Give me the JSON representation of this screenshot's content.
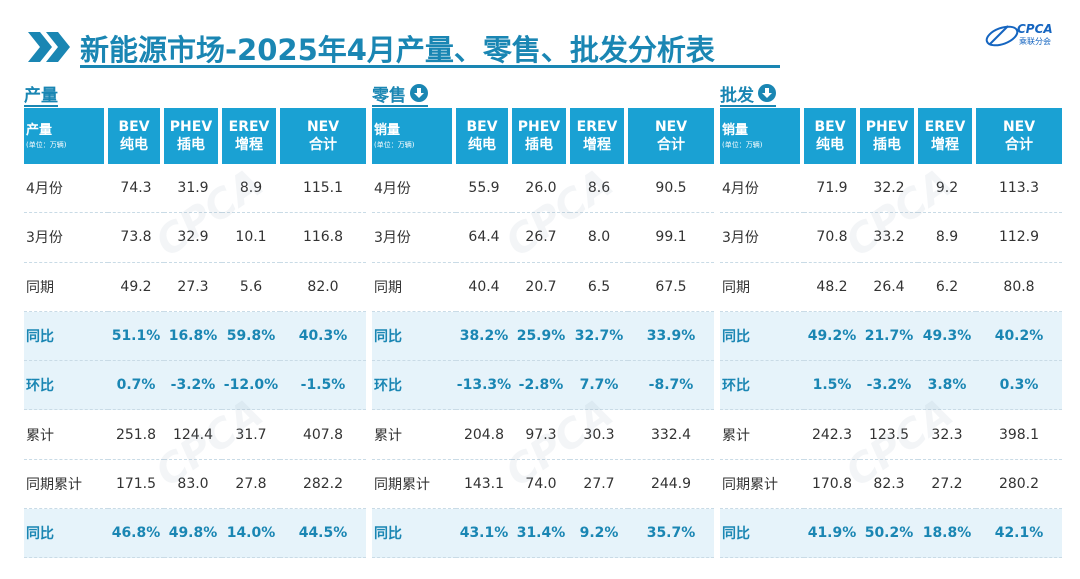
{
  "header": {
    "title": "新能源市场-2025年4月产量、零售、批发分析表",
    "logo_word": "CPCA",
    "logo_sub": "乘联分会"
  },
  "colors": {
    "accent": "#1a86b3",
    "header_bg": "#1aa1d3",
    "highlight_bg": "#e6f3fa"
  },
  "sections": [
    {
      "title": "产量",
      "has_arrow": false,
      "rowhead": "产量",
      "unit": "(单位：万辆)",
      "columns": [
        [
          "BEV",
          "纯电"
        ],
        [
          "PHEV",
          "插电"
        ],
        [
          "EREV",
          "增程"
        ],
        [
          "NEV",
          "合计"
        ]
      ],
      "rows": [
        {
          "label": "4月份",
          "values": [
            "74.3",
            "31.9",
            "8.9",
            "115.1"
          ],
          "hl": false
        },
        {
          "label": "3月份",
          "values": [
            "73.8",
            "32.9",
            "10.1",
            "116.8"
          ],
          "hl": false
        },
        {
          "label": "同期",
          "values": [
            "49.2",
            "27.3",
            "5.6",
            "82.0"
          ],
          "hl": false
        },
        {
          "label": "同比",
          "values": [
            "51.1%",
            "16.8%",
            "59.8%",
            "40.3%"
          ],
          "hl": true
        },
        {
          "label": "环比",
          "values": [
            "0.7%",
            "-3.2%",
            "-12.0%",
            "-1.5%"
          ],
          "hl": true
        },
        {
          "label": "累计",
          "values": [
            "251.8",
            "124.4",
            "31.7",
            "407.8"
          ],
          "hl": false
        },
        {
          "label": "同期累计",
          "values": [
            "171.5",
            "83.0",
            "27.8",
            "282.2"
          ],
          "hl": false
        },
        {
          "label": "同比",
          "values": [
            "46.8%",
            "49.8%",
            "14.0%",
            "44.5%"
          ],
          "hl": true
        }
      ]
    },
    {
      "title": "零售",
      "has_arrow": true,
      "rowhead": "销量",
      "unit": "(单位：万辆)",
      "columns": [
        [
          "BEV",
          "纯电"
        ],
        [
          "PHEV",
          "插电"
        ],
        [
          "EREV",
          "增程"
        ],
        [
          "NEV",
          "合计"
        ]
      ],
      "rows": [
        {
          "label": "4月份",
          "values": [
            "55.9",
            "26.0",
            "8.6",
            "90.5"
          ],
          "hl": false
        },
        {
          "label": "3月份",
          "values": [
            "64.4",
            "26.7",
            "8.0",
            "99.1"
          ],
          "hl": false
        },
        {
          "label": "同期",
          "values": [
            "40.4",
            "20.7",
            "6.5",
            "67.5"
          ],
          "hl": false
        },
        {
          "label": "同比",
          "values": [
            "38.2%",
            "25.9%",
            "32.7%",
            "33.9%"
          ],
          "hl": true
        },
        {
          "label": "环比",
          "values": [
            "-13.3%",
            "-2.8%",
            "7.7%",
            "-8.7%"
          ],
          "hl": true
        },
        {
          "label": "累计",
          "values": [
            "204.8",
            "97.3",
            "30.3",
            "332.4"
          ],
          "hl": false
        },
        {
          "label": "同期累计",
          "values": [
            "143.1",
            "74.0",
            "27.7",
            "244.9"
          ],
          "hl": false
        },
        {
          "label": "同比",
          "values": [
            "43.1%",
            "31.4%",
            "9.2%",
            "35.7%"
          ],
          "hl": true
        }
      ]
    },
    {
      "title": "批发",
      "has_arrow": true,
      "rowhead": "销量",
      "unit": "(单位：万辆)",
      "columns": [
        [
          "BEV",
          "纯电"
        ],
        [
          "PHEV",
          "插电"
        ],
        [
          "EREV",
          "增程"
        ],
        [
          "NEV",
          "合计"
        ]
      ],
      "rows": [
        {
          "label": "4月份",
          "values": [
            "71.9",
            "32.2",
            "9.2",
            "113.3"
          ],
          "hl": false
        },
        {
          "label": "3月份",
          "values": [
            "70.8",
            "33.2",
            "8.9",
            "112.9"
          ],
          "hl": false
        },
        {
          "label": "同期",
          "values": [
            "48.2",
            "26.4",
            "6.2",
            "80.8"
          ],
          "hl": false
        },
        {
          "label": "同比",
          "values": [
            "49.2%",
            "21.7%",
            "49.3%",
            "40.2%"
          ],
          "hl": true
        },
        {
          "label": "环比",
          "values": [
            "1.5%",
            "-3.2%",
            "3.8%",
            "0.3%"
          ],
          "hl": true
        },
        {
          "label": "累计",
          "values": [
            "242.3",
            "123.5",
            "32.3",
            "398.1"
          ],
          "hl": false
        },
        {
          "label": "同期累计",
          "values": [
            "170.8",
            "82.3",
            "27.2",
            "280.2"
          ],
          "hl": false
        },
        {
          "label": "同比",
          "values": [
            "41.9%",
            "50.2%",
            "18.8%",
            "42.1%"
          ],
          "hl": true
        }
      ]
    }
  ]
}
